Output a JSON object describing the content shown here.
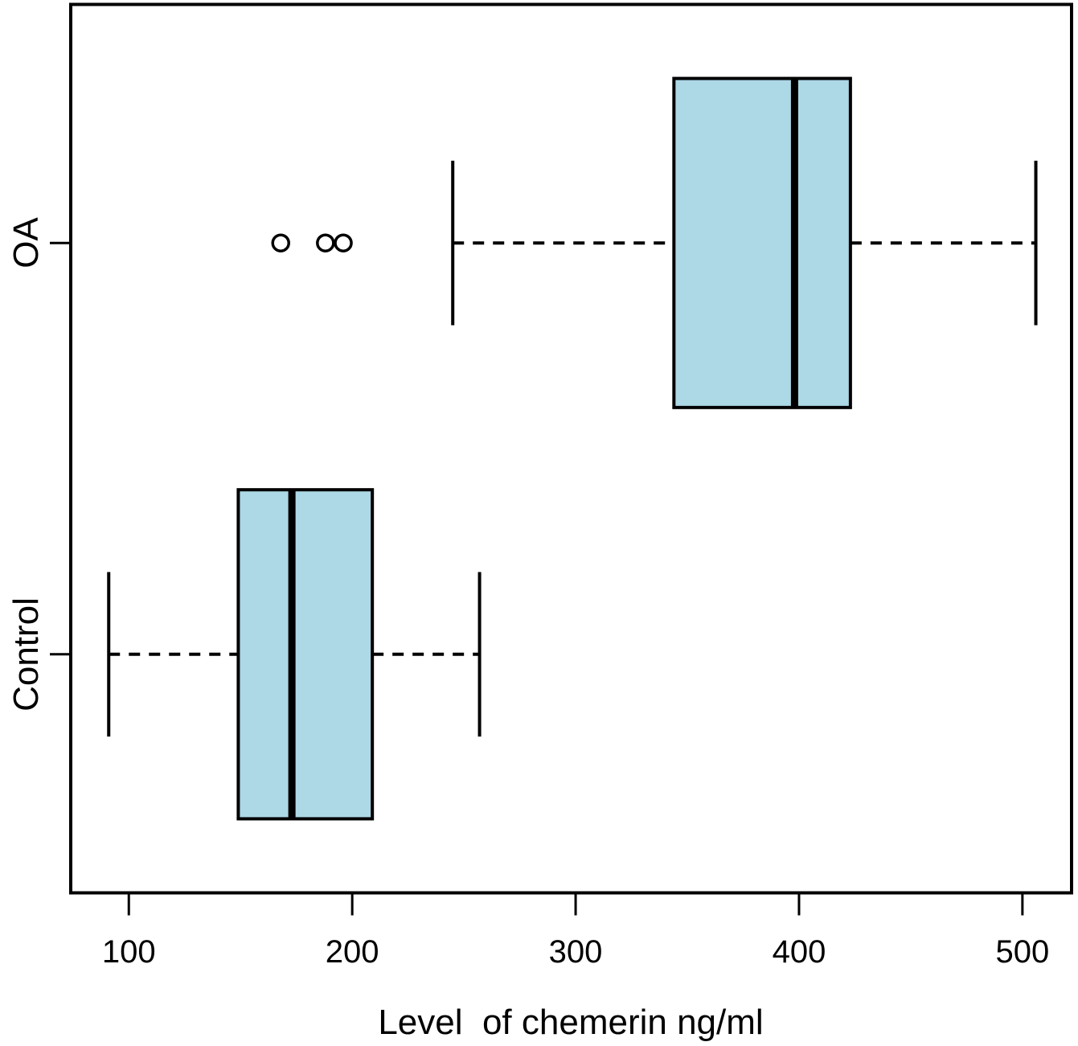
{
  "chart_data": {
    "type": "boxplot",
    "orientation": "horizontal",
    "title": "",
    "xlabel": "Level  of chemerin ng/ml",
    "ylabel": "",
    "categories": [
      "Control",
      "OA"
    ],
    "x_ticks": [
      100,
      200,
      300,
      400,
      500
    ],
    "xlim": [
      74,
      522
    ],
    "grid": false,
    "legend": false,
    "colors": {
      "box_fill": "#ADD8E6",
      "stroke": "#000000",
      "background": "#FFFFFF"
    },
    "series": [
      {
        "name": "Control",
        "position": 1,
        "whisker_low": 91,
        "q1": 149,
        "median": 173,
        "q3": 209,
        "whisker_high": 257,
        "outliers": []
      },
      {
        "name": "OA",
        "position": 2,
        "whisker_low": 245,
        "q1": 344,
        "median": 398,
        "q3": 423,
        "whisker_high": 506,
        "outliers": [
          168,
          188,
          196
        ]
      }
    ]
  }
}
